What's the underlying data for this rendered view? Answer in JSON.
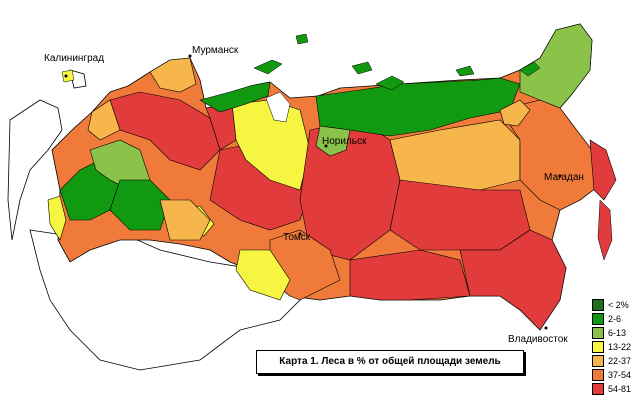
{
  "title": "Карта 1. Леса в % от общей площади земель",
  "cities": {
    "kaliningrad": "Калининград",
    "murmansk": "Мурманск",
    "norilsk": "Норильск",
    "magadan": "Магадан",
    "tomsk": "Томск",
    "vladivostok": "Владивосток"
  },
  "legend": [
    {
      "label": "< 2%",
      "color": "#1e6e1e"
    },
    {
      "label": "2-6",
      "color": "#119a11"
    },
    {
      "label": "6-13",
      "color": "#8bc34a"
    },
    {
      "label": "13-22",
      "color": "#f5f542"
    },
    {
      "label": "22-37",
      "color": "#f7b64b"
    },
    {
      "label": "37-54",
      "color": "#ef7a3a"
    },
    {
      "label": "54-81",
      "color": "#e23b3b"
    }
  ],
  "colors": {
    "water_outline": "#000000",
    "non_russia_fill": "#ffffff"
  }
}
